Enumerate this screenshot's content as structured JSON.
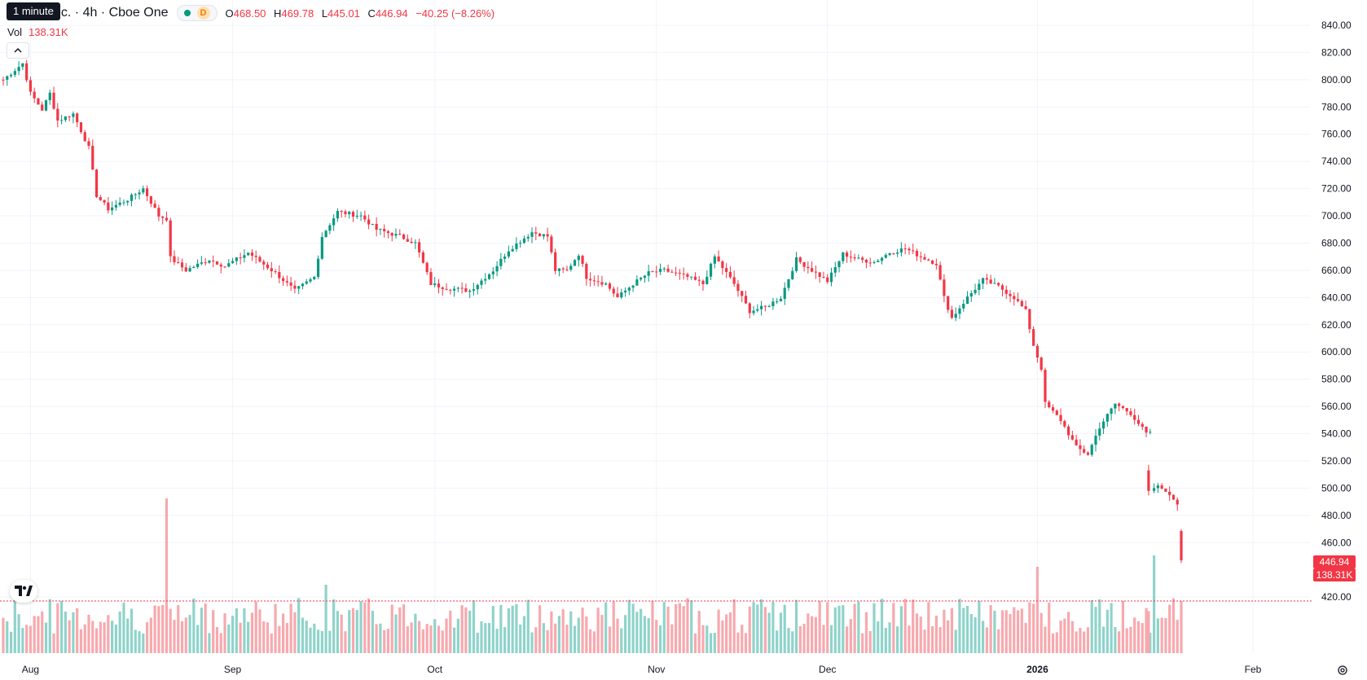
{
  "header": {
    "title": "nc. · 4h · Cboe One",
    "tooltip": "1 minute",
    "interval_badge": "D",
    "open_label": "O",
    "open": "468.50",
    "high_label": "H",
    "high": "469.78",
    "low_label": "L",
    "low": "445.01",
    "close_label": "C",
    "close": "446.94",
    "change": "−40.25 (−8.26%)",
    "volume_label": "Vol",
    "volume": "138.31K"
  },
  "price_axis": {
    "ticks": [
      "840.00",
      "820.00",
      "800.00",
      "780.00",
      "760.00",
      "740.00",
      "720.00",
      "700.00",
      "680.00",
      "660.00",
      "640.00",
      "620.00",
      "600.00",
      "580.00",
      "560.00",
      "540.00",
      "520.00",
      "500.00",
      "480.00",
      "460.00",
      "420.00"
    ],
    "last_price_tag": "446.94",
    "last_volume_tag": "138.31K"
  },
  "time_axis": {
    "labels": [
      {
        "text": "Aug",
        "bold": false
      },
      {
        "text": "Sep",
        "bold": false
      },
      {
        "text": "Oct",
        "bold": false
      },
      {
        "text": "Nov",
        "bold": false
      },
      {
        "text": "Dec",
        "bold": false
      },
      {
        "text": "2026",
        "bold": true
      },
      {
        "text": "Feb",
        "bold": false
      }
    ]
  },
  "colors": {
    "up": "#089981",
    "down": "#f23645",
    "up_volume": "#8fd3ca",
    "down_volume": "#f7a9ae",
    "grid": "#f0f3fa",
    "axis_text": "#131722"
  },
  "icons": {
    "collapse": "chevron-up-icon",
    "logo": "tradingview-logo-icon",
    "settings": "settings-gear-icon"
  },
  "chart_data": {
    "type": "candlestick",
    "symbol_text": "nc. · 4h · Cboe One",
    "ylim": [
      410,
      845
    ],
    "ohlc_last": {
      "open": 468.5,
      "high": 469.78,
      "low": 445.01,
      "close": 446.94
    },
    "last_volume": "138.31K",
    "series": [
      {
        "name": "price",
        "anchors": [
          {
            "x": 0,
            "close": 800
          },
          {
            "x": 5,
            "close": 812
          },
          {
            "x": 7,
            "close": 790
          },
          {
            "x": 10,
            "close": 778
          },
          {
            "x": 12,
            "close": 790
          },
          {
            "x": 14,
            "close": 770
          },
          {
            "x": 18,
            "close": 775
          },
          {
            "x": 22,
            "close": 750
          },
          {
            "x": 24,
            "close": 715
          },
          {
            "x": 27,
            "close": 705
          },
          {
            "x": 32,
            "close": 712
          },
          {
            "x": 36,
            "close": 720
          },
          {
            "x": 40,
            "close": 700
          },
          {
            "x": 42,
            "close": 698
          },
          {
            "x": 43,
            "close": 669
          },
          {
            "x": 47,
            "close": 660
          },
          {
            "x": 53,
            "close": 668
          },
          {
            "x": 57,
            "close": 663
          },
          {
            "x": 63,
            "close": 673
          },
          {
            "x": 70,
            "close": 658
          },
          {
            "x": 75,
            "close": 645
          },
          {
            "x": 80,
            "close": 655
          },
          {
            "x": 82,
            "close": 685
          },
          {
            "x": 86,
            "close": 703
          },
          {
            "x": 92,
            "close": 700
          },
          {
            "x": 96,
            "close": 690
          },
          {
            "x": 102,
            "close": 685
          },
          {
            "x": 106,
            "close": 680
          },
          {
            "x": 110,
            "close": 650
          },
          {
            "x": 114,
            "close": 647
          },
          {
            "x": 120,
            "close": 645
          },
          {
            "x": 126,
            "close": 660
          },
          {
            "x": 130,
            "close": 675
          },
          {
            "x": 136,
            "close": 688
          },
          {
            "x": 140,
            "close": 685
          },
          {
            "x": 142,
            "close": 660
          },
          {
            "x": 145,
            "close": 660
          },
          {
            "x": 148,
            "close": 672
          },
          {
            "x": 150,
            "close": 655
          },
          {
            "x": 155,
            "close": 650
          },
          {
            "x": 158,
            "close": 640
          },
          {
            "x": 162,
            "close": 650
          },
          {
            "x": 166,
            "close": 658
          },
          {
            "x": 170,
            "close": 660
          },
          {
            "x": 176,
            "close": 655
          },
          {
            "x": 180,
            "close": 650
          },
          {
            "x": 183,
            "close": 670
          },
          {
            "x": 188,
            "close": 650
          },
          {
            "x": 192,
            "close": 630
          },
          {
            "x": 196,
            "close": 633
          },
          {
            "x": 200,
            "close": 640
          },
          {
            "x": 204,
            "close": 668
          },
          {
            "x": 208,
            "close": 660
          },
          {
            "x": 212,
            "close": 652
          },
          {
            "x": 216,
            "close": 672
          },
          {
            "x": 220,
            "close": 668
          },
          {
            "x": 224,
            "close": 666
          },
          {
            "x": 228,
            "close": 673
          },
          {
            "x": 232,
            "close": 676
          },
          {
            "x": 236,
            "close": 670
          },
          {
            "x": 240,
            "close": 665
          },
          {
            "x": 242,
            "close": 640
          },
          {
            "x": 244,
            "close": 625
          },
          {
            "x": 248,
            "close": 640
          },
          {
            "x": 252,
            "close": 653
          },
          {
            "x": 256,
            "close": 648
          },
          {
            "x": 260,
            "close": 640
          },
          {
            "x": 263,
            "close": 630
          },
          {
            "x": 265,
            "close": 605
          },
          {
            "x": 267,
            "close": 588
          },
          {
            "x": 268,
            "close": 562
          },
          {
            "x": 272,
            "close": 550
          },
          {
            "x": 276,
            "close": 530
          },
          {
            "x": 279,
            "close": 525
          },
          {
            "x": 282,
            "close": 545
          },
          {
            "x": 286,
            "close": 562
          },
          {
            "x": 290,
            "close": 555
          },
          {
            "x": 294,
            "close": 540
          },
          {
            "x": 295,
            "close": 540
          }
        ]
      },
      {
        "name": "price_after_gap",
        "anchors": [
          {
            "x": 295,
            "close": 498
          },
          {
            "x": 297,
            "close": 502
          },
          {
            "x": 300,
            "close": 495
          },
          {
            "x": 302,
            "close": 488
          },
          {
            "x": 303,
            "close": 446.94
          }
        ]
      }
    ],
    "x_range": [
      0,
      303
    ],
    "volume_spikes": [
      {
        "x": 42,
        "value": 0.95
      },
      {
        "x": 83,
        "value": 0.42
      },
      {
        "x": 188,
        "value": 0.33
      },
      {
        "x": 266,
        "value": 0.53
      },
      {
        "x": 296,
        "value": 0.6
      },
      {
        "x": 282,
        "value": 0.33
      }
    ]
  }
}
